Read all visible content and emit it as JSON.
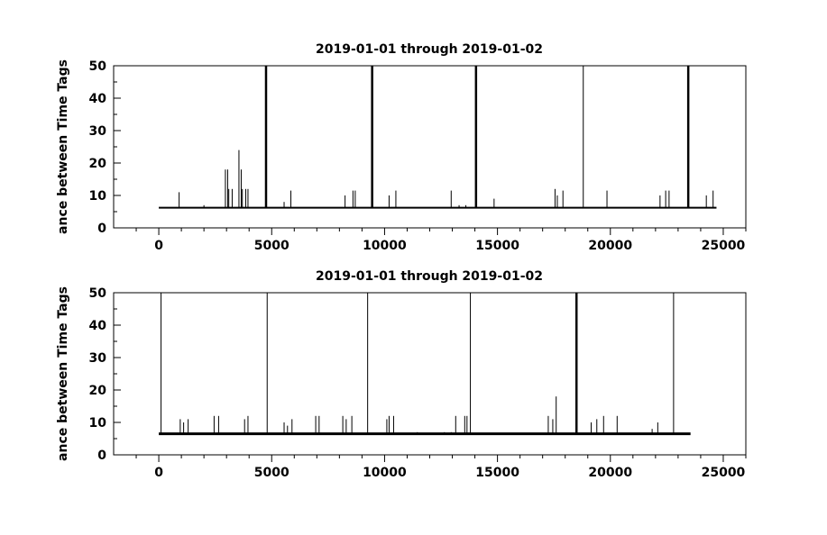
{
  "chart_data": [
    {
      "type": "line",
      "title": "2019-01-01 through 2019-01-02",
      "xlabel": "",
      "ylabel": "ance between Time Tags",
      "xlim": [
        -2000,
        26000
      ],
      "ylim": [
        0,
        50
      ],
      "xticks": [
        0,
        5000,
        10000,
        15000,
        20000,
        25000
      ],
      "yticks": [
        0,
        10,
        20,
        30,
        40,
        50
      ],
      "grid": false,
      "baseline": 6.2,
      "x_end": 24700,
      "tall_spikes": [
        {
          "x": 4750,
          "y": 50,
          "bold": true
        },
        {
          "x": 9450,
          "y": 50,
          "bold": true
        },
        {
          "x": 14050,
          "y": 50,
          "bold": true
        },
        {
          "x": 18800,
          "y": 50,
          "bold": false
        },
        {
          "x": 23450,
          "y": 50,
          "bold": true
        }
      ],
      "spikes": [
        {
          "x": 900,
          "y": 11
        },
        {
          "x": 2000,
          "y": 7
        },
        {
          "x": 2950,
          "y": 18
        },
        {
          "x": 3050,
          "y": 18
        },
        {
          "x": 3100,
          "y": 12
        },
        {
          "x": 3250,
          "y": 12
        },
        {
          "x": 3550,
          "y": 24
        },
        {
          "x": 3650,
          "y": 18
        },
        {
          "x": 3700,
          "y": 12
        },
        {
          "x": 3850,
          "y": 12
        },
        {
          "x": 3950,
          "y": 12
        },
        {
          "x": 5550,
          "y": 8
        },
        {
          "x": 5850,
          "y": 11.5
        },
        {
          "x": 8250,
          "y": 10
        },
        {
          "x": 8600,
          "y": 11.5
        },
        {
          "x": 8700,
          "y": 11.5
        },
        {
          "x": 10200,
          "y": 10
        },
        {
          "x": 10500,
          "y": 11.5
        },
        {
          "x": 12950,
          "y": 11.5
        },
        {
          "x": 13300,
          "y": 7
        },
        {
          "x": 13600,
          "y": 7
        },
        {
          "x": 14850,
          "y": 9
        },
        {
          "x": 17550,
          "y": 12
        },
        {
          "x": 17650,
          "y": 10
        },
        {
          "x": 17900,
          "y": 11.5
        },
        {
          "x": 19850,
          "y": 11.5
        },
        {
          "x": 22200,
          "y": 10
        },
        {
          "x": 22450,
          "y": 11.5
        },
        {
          "x": 22600,
          "y": 11.5
        },
        {
          "x": 24250,
          "y": 10
        },
        {
          "x": 24550,
          "y": 11.5
        }
      ]
    },
    {
      "type": "line",
      "title": "2019-01-01 through 2019-01-02",
      "xlabel": "",
      "ylabel": "ance between Time Tags",
      "xlim": [
        -2000,
        26000
      ],
      "ylim": [
        0,
        50
      ],
      "xticks": [
        0,
        5000,
        10000,
        15000,
        20000,
        25000
      ],
      "yticks": [
        0,
        10,
        20,
        30,
        40,
        50
      ],
      "grid": false,
      "baseline": 6.5,
      "x_end": 23550,
      "tall_spikes": [
        {
          "x": 100,
          "y": 50,
          "bold": false
        },
        {
          "x": 4800,
          "y": 50,
          "bold": false
        },
        {
          "x": 9250,
          "y": 50,
          "bold": false
        },
        {
          "x": 13800,
          "y": 50,
          "bold": false
        },
        {
          "x": 18500,
          "y": 50,
          "bold": true
        },
        {
          "x": 22800,
          "y": 50,
          "bold": false
        }
      ],
      "spikes": [
        {
          "x": 950,
          "y": 11
        },
        {
          "x": 1100,
          "y": 10
        },
        {
          "x": 1300,
          "y": 11
        },
        {
          "x": 2450,
          "y": 12
        },
        {
          "x": 2650,
          "y": 12
        },
        {
          "x": 3800,
          "y": 11
        },
        {
          "x": 3950,
          "y": 12
        },
        {
          "x": 5550,
          "y": 10
        },
        {
          "x": 5700,
          "y": 9
        },
        {
          "x": 5900,
          "y": 11
        },
        {
          "x": 6950,
          "y": 12
        },
        {
          "x": 7100,
          "y": 12
        },
        {
          "x": 8150,
          "y": 12
        },
        {
          "x": 8300,
          "y": 11
        },
        {
          "x": 8550,
          "y": 12
        },
        {
          "x": 10100,
          "y": 11
        },
        {
          "x": 10200,
          "y": 12
        },
        {
          "x": 10400,
          "y": 12
        },
        {
          "x": 11450,
          "y": 7
        },
        {
          "x": 12650,
          "y": 7
        },
        {
          "x": 12950,
          "y": 7
        },
        {
          "x": 13150,
          "y": 12
        },
        {
          "x": 13550,
          "y": 12
        },
        {
          "x": 13650,
          "y": 12
        },
        {
          "x": 17250,
          "y": 12
        },
        {
          "x": 17450,
          "y": 11
        },
        {
          "x": 17600,
          "y": 18
        },
        {
          "x": 19150,
          "y": 10
        },
        {
          "x": 19400,
          "y": 11
        },
        {
          "x": 19700,
          "y": 12
        },
        {
          "x": 20300,
          "y": 12
        },
        {
          "x": 21850,
          "y": 8
        },
        {
          "x": 22100,
          "y": 10
        }
      ]
    }
  ]
}
